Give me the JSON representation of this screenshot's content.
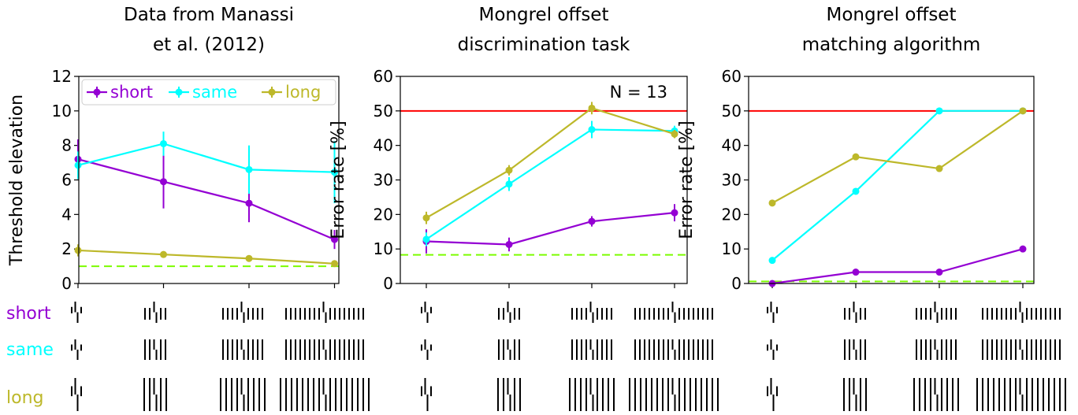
{
  "colors": {
    "short": "#9400d3",
    "same": "#00ffff",
    "long": "#bdb82a",
    "chance": "#ff0000",
    "baseline": "#7cfc00"
  },
  "chart_data": [
    {
      "type": "line",
      "title_lines": [
        "Data from Manassi",
        "et al. (2012)"
      ],
      "xlabel": "",
      "ylabel": "Threshold elevation",
      "ylim": [
        0,
        12
      ],
      "yticks": [
        0,
        2,
        4,
        6,
        8,
        10,
        12
      ],
      "x": [
        1,
        2,
        3,
        4
      ],
      "legend": {
        "placement": "top",
        "entries": [
          "short",
          "same",
          "long"
        ]
      },
      "series": [
        {
          "name": "short",
          "values": [
            7.2,
            5.9,
            4.65,
            2.55
          ],
          "errors": [
            1.15,
            1.55,
            1.1,
            0.55
          ]
        },
        {
          "name": "same",
          "values": [
            6.85,
            8.1,
            6.6,
            6.45
          ],
          "errors": [
            0.8,
            0.7,
            1.4,
            1.8
          ]
        },
        {
          "name": "long",
          "values": [
            1.92,
            1.68,
            1.45,
            1.15
          ],
          "errors": [
            0.35,
            0.15,
            0.1,
            0.1
          ]
        }
      ],
      "reference_lines": [
        {
          "key": "baseline",
          "y": 1.0,
          "style": "dashed"
        }
      ],
      "annotation": ""
    },
    {
      "type": "line",
      "title_lines": [
        "Mongrel offset",
        "discrimination task"
      ],
      "xlabel": "",
      "ylabel": "Error rate [%]",
      "ylim": [
        0,
        60
      ],
      "yticks": [
        0,
        10,
        20,
        30,
        40,
        50,
        60
      ],
      "x": [
        1,
        2,
        3,
        4
      ],
      "series": [
        {
          "name": "short",
          "values": [
            12.2,
            11.3,
            18.0,
            20.5
          ],
          "errors": [
            3.5,
            2.0,
            1.5,
            2.5
          ]
        },
        {
          "name": "same",
          "values": [
            12.8,
            28.8,
            44.6,
            44.2
          ],
          "errors": [
            2.0,
            2.0,
            2.5,
            1.5
          ]
        },
        {
          "name": "long",
          "values": [
            19.0,
            32.8,
            50.8,
            43.3
          ],
          "errors": [
            1.8,
            1.5,
            1.8,
            1.2
          ]
        }
      ],
      "reference_lines": [
        {
          "key": "chance",
          "y": 50,
          "style": "solid"
        },
        {
          "key": "baseline",
          "y": 8.3,
          "style": "dashed"
        }
      ],
      "annotation": "N = 13"
    },
    {
      "type": "line",
      "title_lines": [
        "Mongrel offset",
        "matching algorithm"
      ],
      "xlabel": "",
      "ylabel": "Error rate [%]",
      "ylim": [
        0,
        60
      ],
      "yticks": [
        0,
        10,
        20,
        30,
        40,
        50,
        60
      ],
      "x": [
        1,
        2,
        3,
        4
      ],
      "series": [
        {
          "name": "short",
          "values": [
            0,
            3.3,
            3.3,
            10.0
          ],
          "errors": [
            0,
            0,
            0,
            0
          ]
        },
        {
          "name": "same",
          "values": [
            6.7,
            26.7,
            50.0,
            50.0
          ],
          "errors": [
            0,
            0,
            0,
            0
          ]
        },
        {
          "name": "long",
          "values": [
            23.3,
            36.7,
            33.3,
            50.0
          ],
          "errors": [
            0,
            0,
            0,
            0
          ]
        }
      ],
      "reference_lines": [
        {
          "key": "chance",
          "y": 50,
          "style": "solid"
        },
        {
          "key": "baseline",
          "y": 0.6,
          "style": "dashed"
        }
      ],
      "annotation": ""
    }
  ],
  "stimuli": {
    "rows": [
      {
        "label": "short"
      },
      {
        "label": "same"
      },
      {
        "label": "long"
      }
    ],
    "flanker_counts": [
      0,
      2,
      4,
      8
    ]
  }
}
